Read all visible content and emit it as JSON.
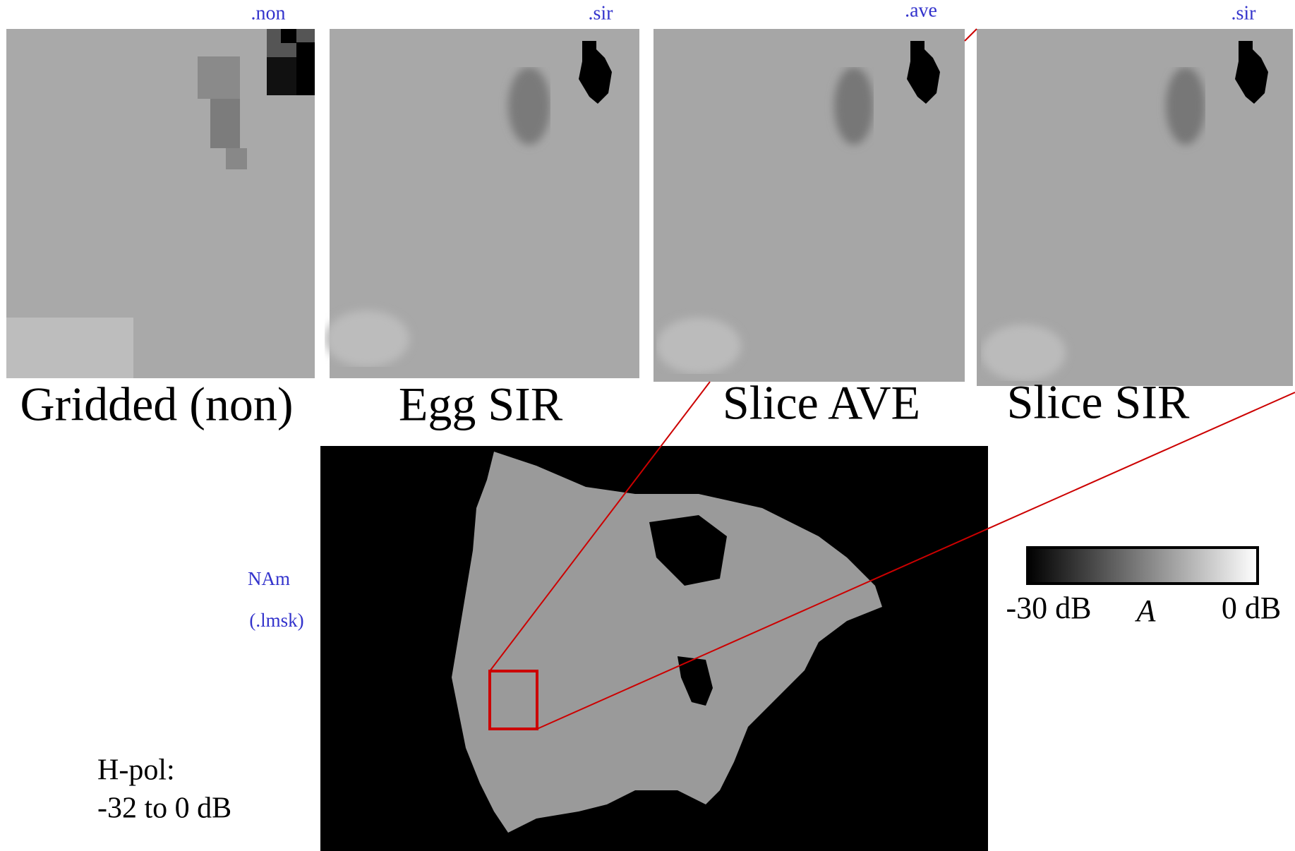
{
  "panels": [
    {
      "tag": ".non",
      "label": "Gridded (non)"
    },
    {
      "tag": ".sir",
      "label": "Egg SIR"
    },
    {
      "tag": ".ave",
      "label": "Slice AVE"
    },
    {
      "tag": ".sir",
      "label": "Slice SIR"
    }
  ],
  "map": {
    "region": "NAm",
    "tag": "(.lmsk)"
  },
  "note": {
    "line1": "H-pol:",
    "line2": "-32 to 0 dB"
  },
  "colorbar": {
    "min_label": "-30 dB",
    "title": "A",
    "max_label": "0 dB"
  }
}
